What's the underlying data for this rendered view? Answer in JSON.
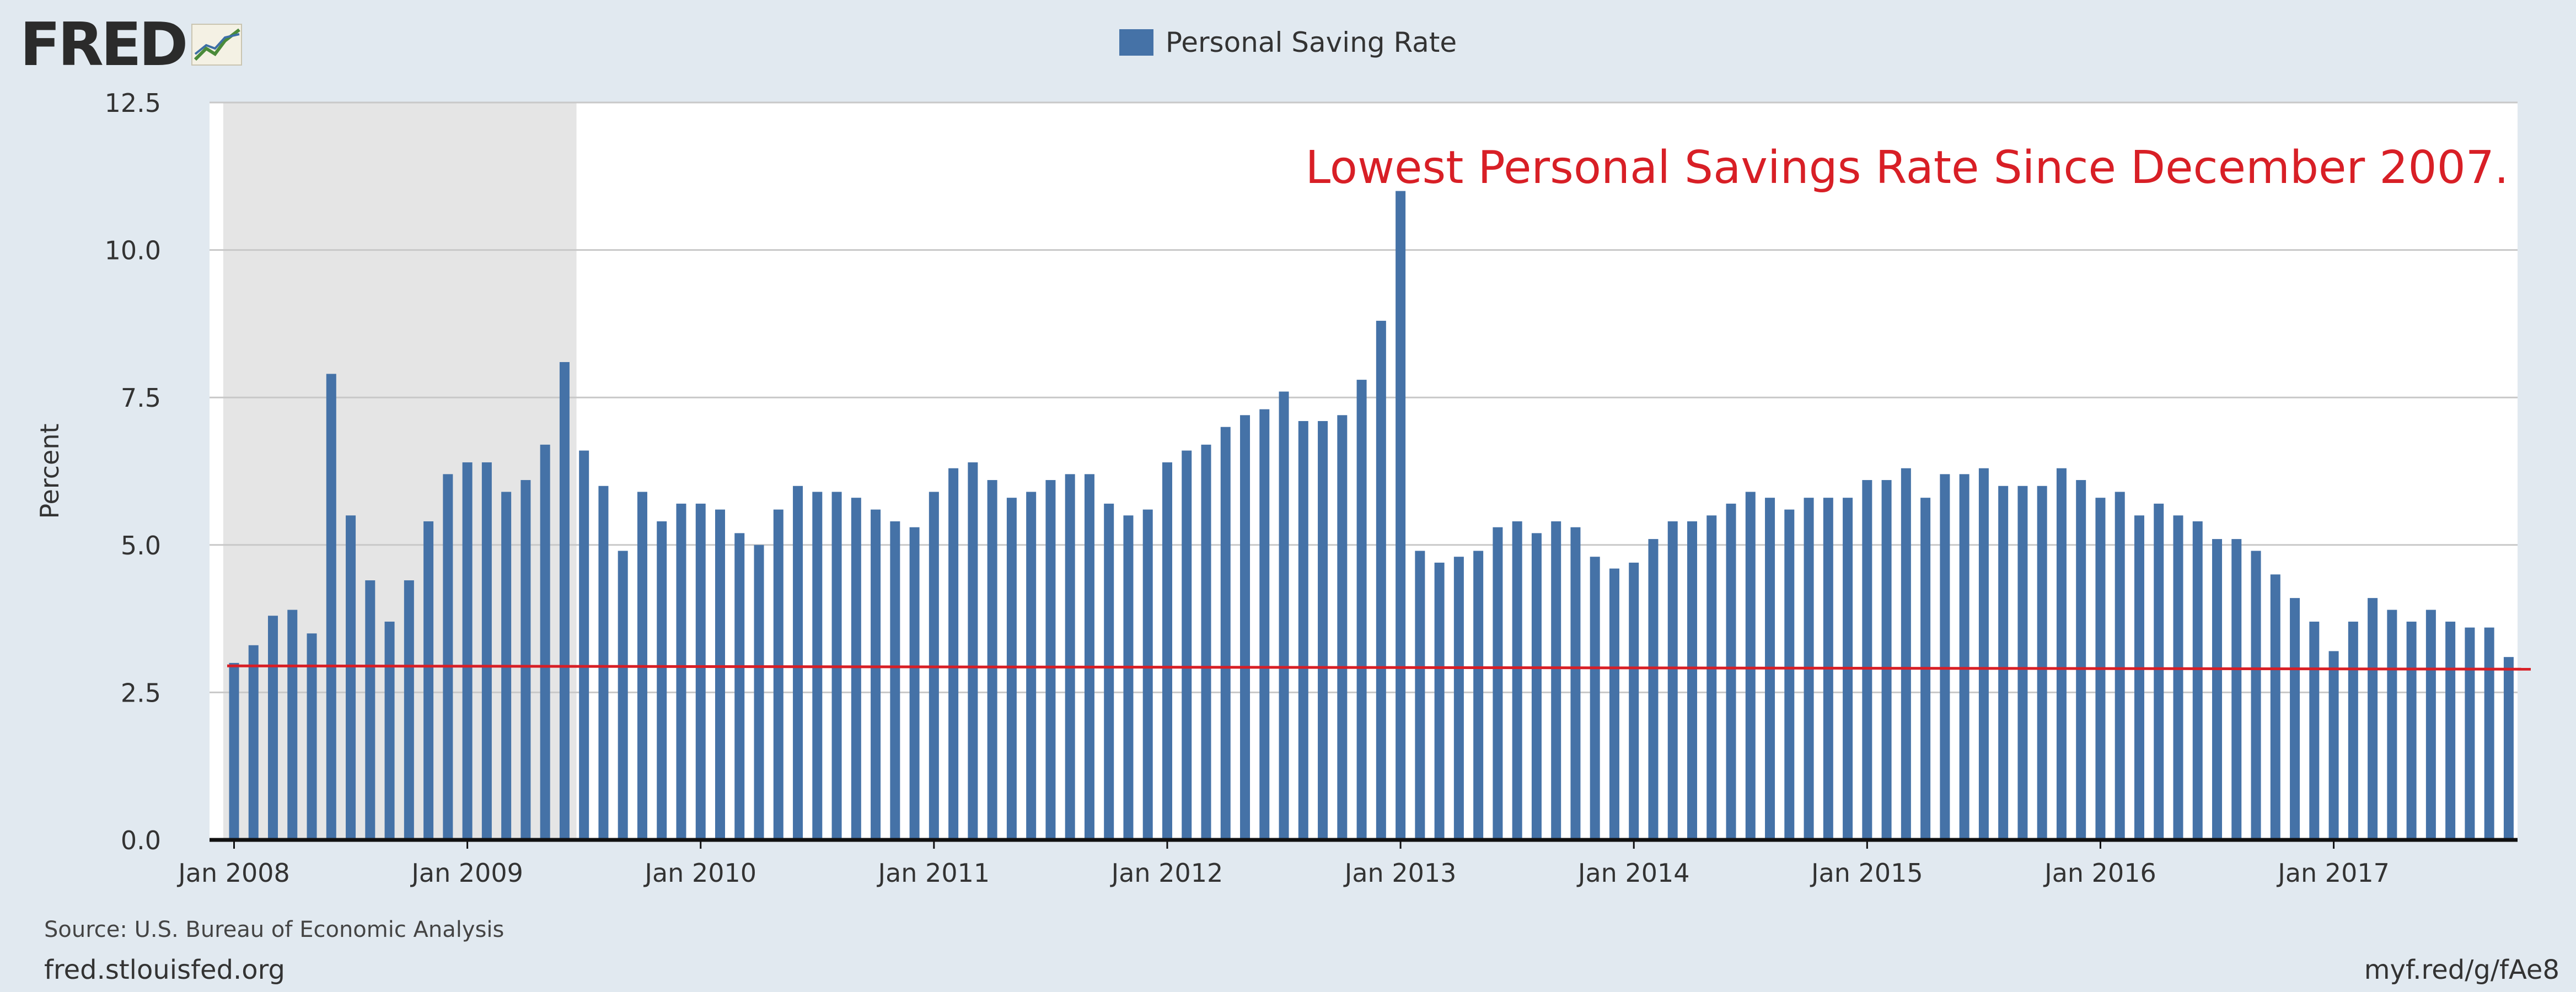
{
  "header": {
    "logo_text": "FRED"
  },
  "colors": {
    "bar": "#4572a7",
    "recession": "#e5e5e5",
    "reference_line": "#d81f26",
    "annotation": "#d81f26",
    "background": "#e1e9f0",
    "plot": "#ffffff"
  },
  "icons": {
    "logo": "fred-line-chart-icon"
  },
  "chart_data": {
    "type": "bar",
    "legend": [
      "Personal Saving Rate"
    ],
    "legend_position": "top-center",
    "ylabel": "Percent",
    "ylim": [
      0,
      12.5
    ],
    "yticks": [
      "0.0",
      "2.5",
      "5.0",
      "7.5",
      "10.0",
      "12.5"
    ],
    "xtick_labels": [
      "Jan 2008",
      "Jan 2009",
      "Jan 2010",
      "Jan 2011",
      "Jan 2012",
      "Jan 2013",
      "Jan 2014",
      "Jan 2015",
      "Jan 2016",
      "Jan 2017"
    ],
    "grid": true,
    "start": "2008-01",
    "frequency": "monthly",
    "series": [
      {
        "name": "Personal Saving Rate",
        "values": [
          3.0,
          3.3,
          3.8,
          3.9,
          3.5,
          7.9,
          5.5,
          4.4,
          3.7,
          4.4,
          5.4,
          6.2,
          6.4,
          6.4,
          5.9,
          6.1,
          6.7,
          8.1,
          6.6,
          6.0,
          4.9,
          5.9,
          5.4,
          5.7,
          5.7,
          5.6,
          5.2,
          5.0,
          5.6,
          6.0,
          5.9,
          5.9,
          5.8,
          5.6,
          5.4,
          5.3,
          5.9,
          6.3,
          6.4,
          6.1,
          5.8,
          5.9,
          6.1,
          6.2,
          6.2,
          5.7,
          5.5,
          5.6,
          6.4,
          6.6,
          6.7,
          7.0,
          7.2,
          7.3,
          7.6,
          7.1,
          7.1,
          7.2,
          7.8,
          8.8,
          11.0,
          4.9,
          4.7,
          4.8,
          4.9,
          5.3,
          5.4,
          5.2,
          5.4,
          5.3,
          4.8,
          4.6,
          4.7,
          5.1,
          5.4,
          5.4,
          5.5,
          5.7,
          5.9,
          5.8,
          5.6,
          5.8,
          5.8,
          5.8,
          6.1,
          6.1,
          6.3,
          5.8,
          6.2,
          6.2,
          6.3,
          6.0,
          6.0,
          6.0,
          6.3,
          6.1,
          5.8,
          5.9,
          5.5,
          5.7,
          5.5,
          5.4,
          5.1,
          5.1,
          4.9,
          4.5,
          4.1,
          3.7,
          3.2,
          3.7,
          4.1,
          3.9,
          3.7,
          3.9,
          3.7,
          3.6,
          3.6,
          3.1
        ]
      }
    ],
    "recession_shading": {
      "from": "2008-01",
      "to": "2009-06"
    },
    "reference_line": {
      "y": 2.95
    },
    "annotation": "Lowest Personal Savings Rate Since December 2007."
  },
  "footer": {
    "source": "Source: U.S. Bureau of Economic Analysis",
    "site": "fred.stlouisfed.org",
    "short_link": "myf.red/g/fAe8"
  }
}
